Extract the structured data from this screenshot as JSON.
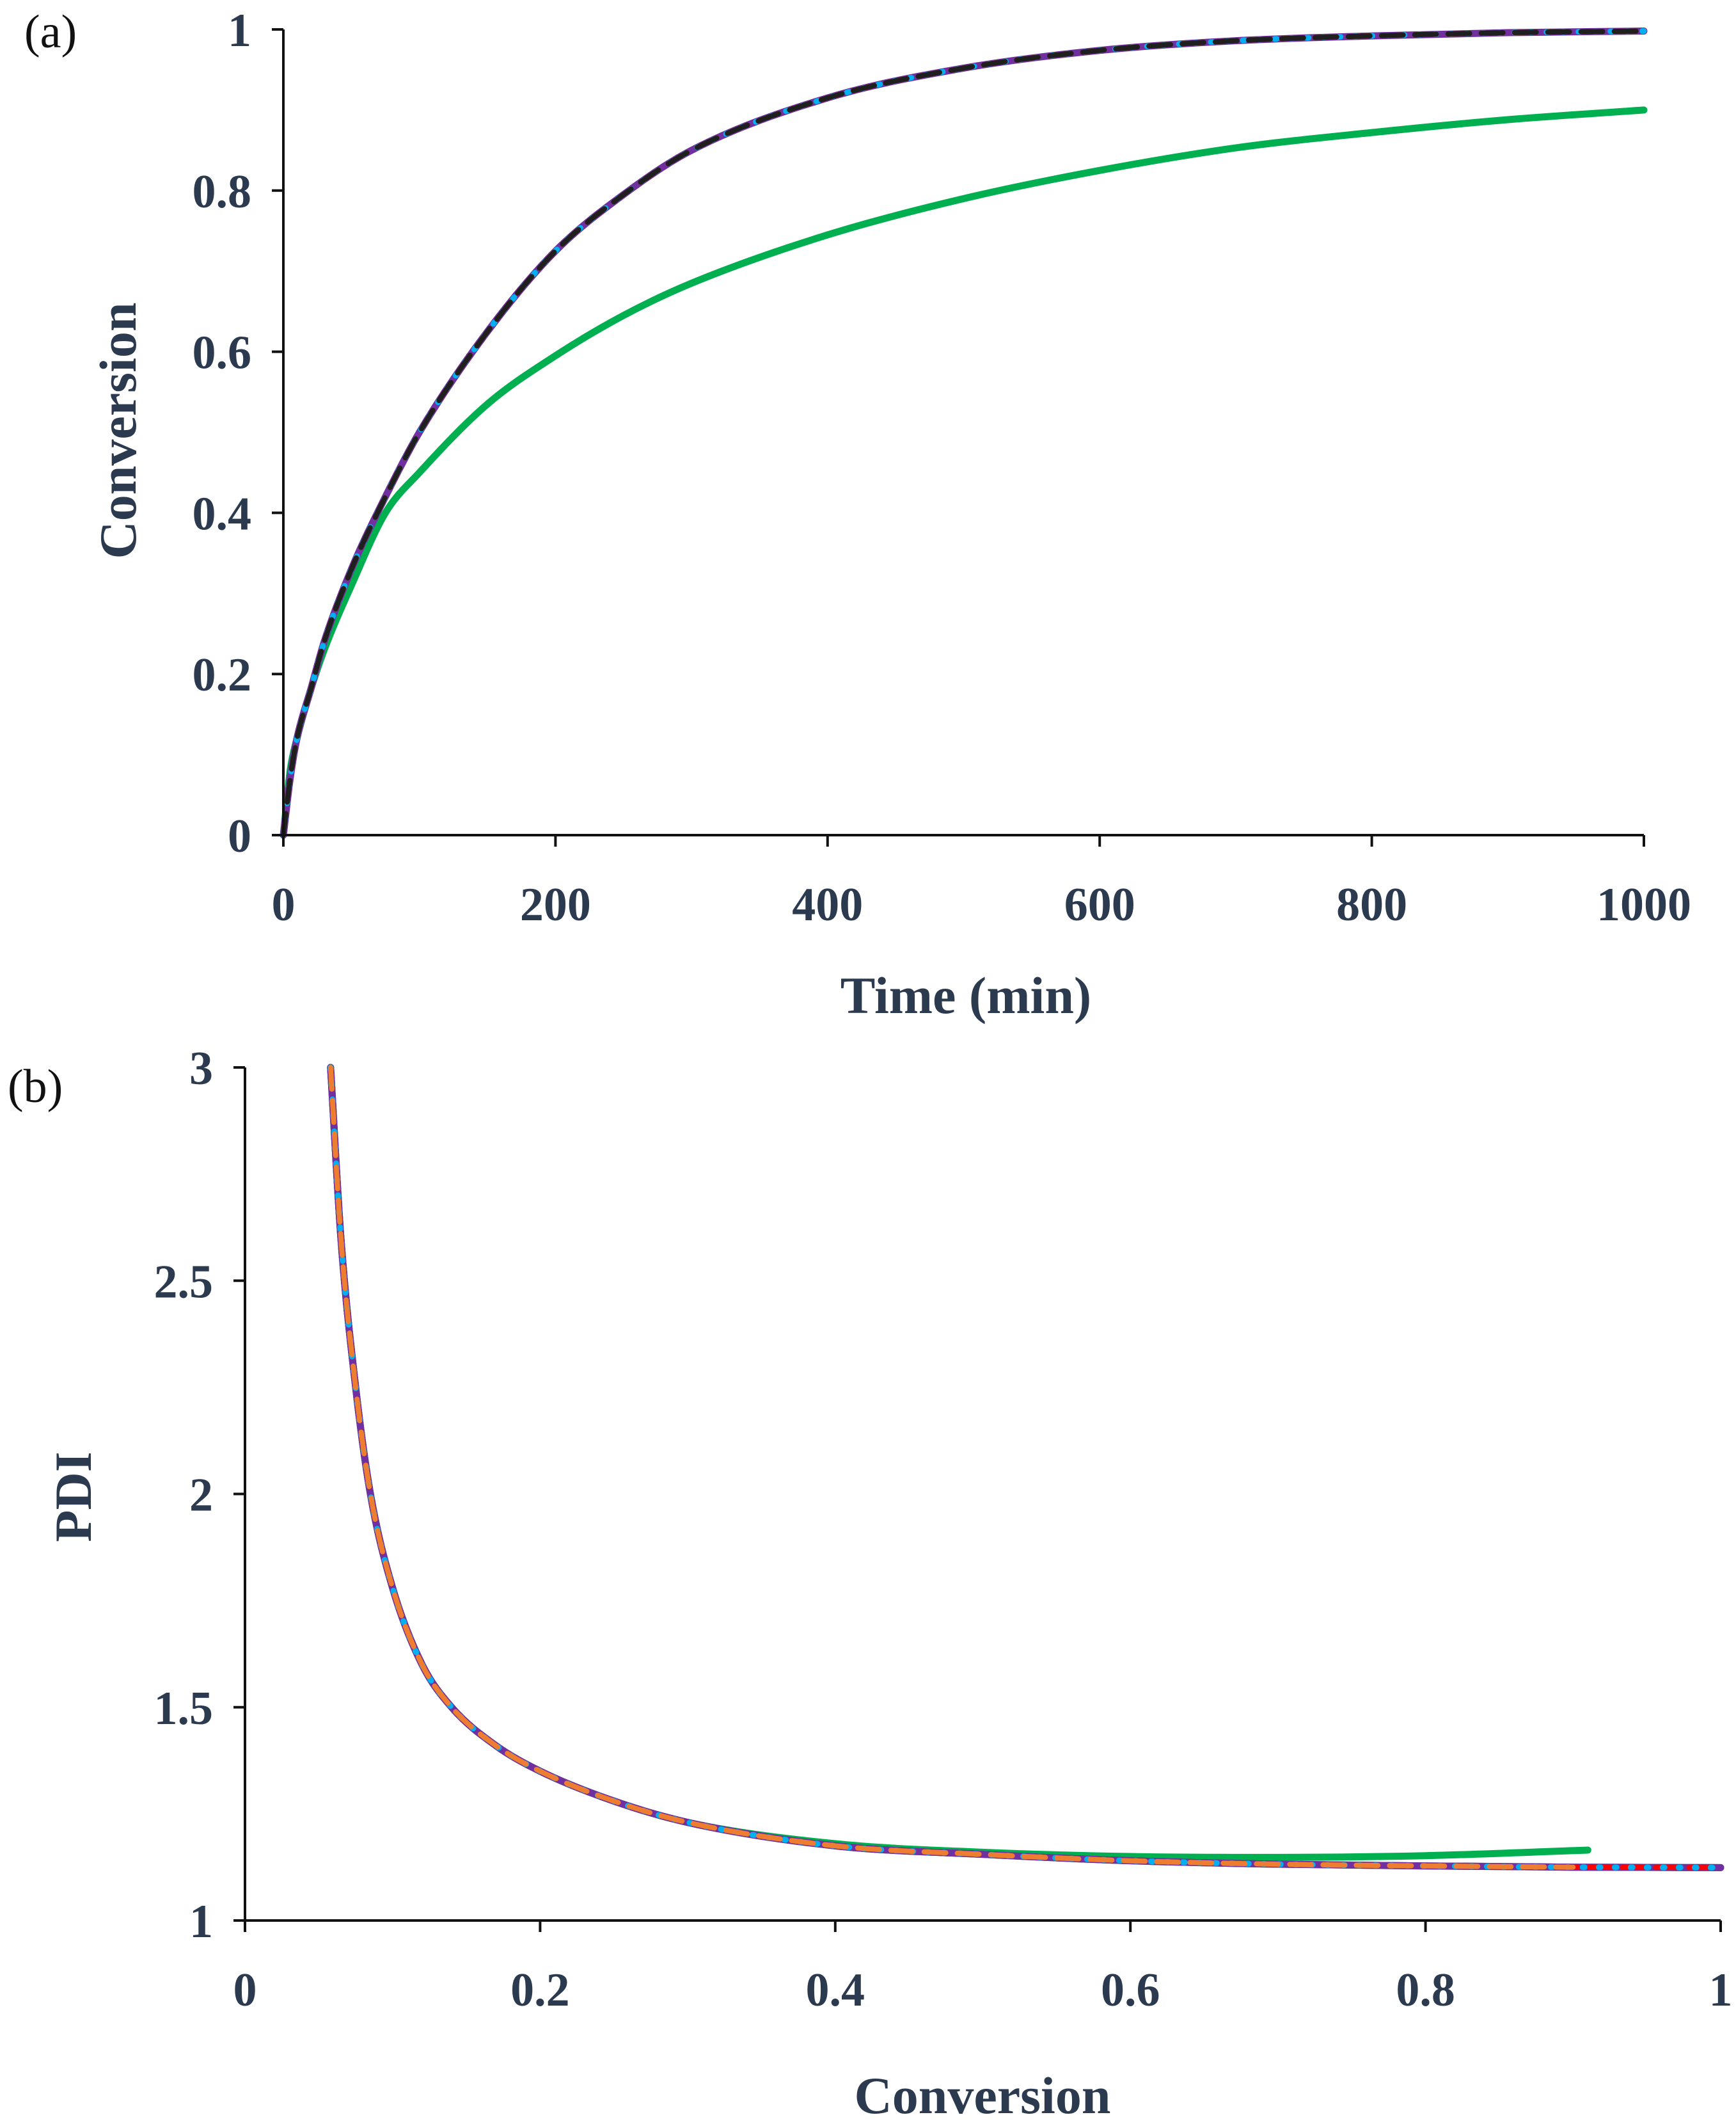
{
  "chart_data": [
    {
      "type": "line",
      "panel_label": "(a)",
      "xlabel": "Time (min)",
      "ylabel": "Conversion",
      "xlim": [
        0,
        1000
      ],
      "ylim": [
        0,
        1
      ],
      "x_ticks": [
        0,
        200,
        400,
        600,
        800,
        1000
      ],
      "y_ticks": [
        0,
        0.2,
        0.4,
        0.6,
        0.8,
        1
      ],
      "x_tick_labels": [
        "0",
        "200",
        "400",
        "600",
        "800",
        "1000"
      ],
      "y_tick_labels": [
        "0",
        "0.2",
        "0.4",
        "0.6",
        "0.8",
        "1"
      ],
      "grid": false,
      "series": [
        {
          "color": "#00b050",
          "style": "solid",
          "x": [
            0,
            5,
            10,
            20,
            30,
            50,
            75,
            100,
            150,
            200,
            250,
            300,
            400,
            500,
            600,
            700,
            800,
            900,
            1000
          ],
          "y": [
            0,
            0.08,
            0.12,
            0.18,
            0.23,
            0.31,
            0.4,
            0.45,
            0.535,
            0.595,
            0.645,
            0.685,
            0.745,
            0.79,
            0.825,
            0.853,
            0.872,
            0.888,
            0.9
          ]
        },
        {
          "color": "#7030a0",
          "style": "solid",
          "x": [
            0,
            5,
            10,
            20,
            30,
            50,
            75,
            100,
            150,
            200,
            250,
            300,
            400,
            500,
            600,
            700,
            800,
            900,
            1000
          ],
          "y": [
            0,
            0.07,
            0.12,
            0.18,
            0.24,
            0.33,
            0.42,
            0.5,
            0.625,
            0.725,
            0.795,
            0.85,
            0.915,
            0.952,
            0.974,
            0.986,
            0.992,
            0.996,
            0.998
          ]
        },
        {
          "color": "#ff0000",
          "style": "dash",
          "x": [
            0,
            5,
            10,
            20,
            30,
            50,
            75,
            100,
            150,
            200,
            250,
            300,
            400,
            500,
            600,
            700,
            800,
            900,
            1000
          ],
          "y": [
            0,
            0.07,
            0.12,
            0.18,
            0.24,
            0.33,
            0.42,
            0.5,
            0.625,
            0.725,
            0.795,
            0.85,
            0.915,
            0.952,
            0.974,
            0.986,
            0.992,
            0.996,
            0.998
          ]
        },
        {
          "color": "#00b0f0",
          "style": "dot",
          "x": [
            0,
            5,
            10,
            20,
            30,
            50,
            75,
            100,
            150,
            200,
            250,
            300,
            400,
            500,
            600,
            700,
            800,
            900,
            1000
          ],
          "y": [
            0,
            0.07,
            0.12,
            0.18,
            0.24,
            0.33,
            0.42,
            0.5,
            0.625,
            0.725,
            0.795,
            0.85,
            0.915,
            0.952,
            0.974,
            0.986,
            0.992,
            0.996,
            0.998
          ]
        },
        {
          "color": "#c55a11",
          "style": "dash",
          "x": [
            0,
            5,
            10,
            20,
            30,
            50,
            75,
            100,
            150,
            200,
            250,
            300,
            400,
            500,
            600,
            700,
            800,
            900,
            1000
          ],
          "y": [
            0,
            0.07,
            0.12,
            0.18,
            0.24,
            0.33,
            0.42,
            0.5,
            0.625,
            0.725,
            0.795,
            0.85,
            0.915,
            0.952,
            0.974,
            0.986,
            0.992,
            0.996,
            0.998
          ]
        },
        {
          "color": "#1f1f1f",
          "style": "dash",
          "x": [
            0,
            5,
            10,
            20,
            30,
            50,
            75,
            100,
            150,
            200,
            250,
            300,
            400,
            500,
            600,
            700,
            800,
            900,
            1000
          ],
          "y": [
            0,
            0.07,
            0.12,
            0.18,
            0.24,
            0.33,
            0.42,
            0.5,
            0.625,
            0.725,
            0.795,
            0.85,
            0.915,
            0.952,
            0.974,
            0.986,
            0.992,
            0.996,
            0.998
          ]
        }
      ]
    },
    {
      "type": "line",
      "panel_label": "(b)",
      "xlabel": "Conversion",
      "ylabel": "PDI",
      "xlim": [
        0,
        1
      ],
      "ylim": [
        1,
        3
      ],
      "x_ticks": [
        0,
        0.2,
        0.4,
        0.6,
        0.8,
        1
      ],
      "y_ticks": [
        1,
        1.5,
        2,
        2.5,
        3
      ],
      "x_tick_labels": [
        "0",
        "0.2",
        "0.4",
        "0.6",
        "0.8",
        "1"
      ],
      "y_tick_labels": [
        "1",
        "1.5",
        "2",
        "2.5",
        "3"
      ],
      "grid": false,
      "series": [
        {
          "color": "#00b050",
          "style": "solid",
          "x": [
            0.058,
            0.065,
            0.075,
            0.085,
            0.1,
            0.12,
            0.14,
            0.17,
            0.2,
            0.25,
            0.3,
            0.4,
            0.5,
            0.6,
            0.7,
            0.8,
            0.91
          ],
          "y": [
            3.0,
            2.6,
            2.25,
            2.0,
            1.78,
            1.6,
            1.5,
            1.41,
            1.35,
            1.28,
            1.23,
            1.18,
            1.16,
            1.15,
            1.148,
            1.152,
            1.165
          ]
        },
        {
          "color": "#1f3864",
          "style": "solid",
          "x": [
            0.058,
            0.065,
            0.075,
            0.085,
            0.1,
            0.12,
            0.14,
            0.17,
            0.2,
            0.25,
            0.3,
            0.4,
            0.5,
            0.6,
            0.7,
            0.8,
            0.9,
            1.0
          ],
          "y": [
            3.0,
            2.6,
            2.25,
            2.0,
            1.78,
            1.6,
            1.5,
            1.41,
            1.35,
            1.28,
            1.23,
            1.175,
            1.155,
            1.14,
            1.132,
            1.128,
            1.125,
            1.124
          ]
        },
        {
          "color": "#7030a0",
          "style": "solid",
          "x": [
            0.058,
            0.065,
            0.075,
            0.085,
            0.1,
            0.12,
            0.14,
            0.17,
            0.2,
            0.25,
            0.3,
            0.4,
            0.5,
            0.6,
            0.7,
            0.8,
            0.9,
            1.0
          ],
          "y": [
            3.0,
            2.6,
            2.25,
            2.0,
            1.78,
            1.6,
            1.5,
            1.41,
            1.35,
            1.28,
            1.23,
            1.175,
            1.155,
            1.14,
            1.132,
            1.128,
            1.125,
            1.124
          ]
        },
        {
          "color": "#ff0000",
          "style": "dash",
          "x": [
            0.058,
            0.065,
            0.075,
            0.085,
            0.1,
            0.12,
            0.14,
            0.17,
            0.2,
            0.25,
            0.3,
            0.4,
            0.5,
            0.6,
            0.7,
            0.8,
            0.9,
            1.0
          ],
          "y": [
            3.0,
            2.6,
            2.25,
            2.0,
            1.78,
            1.6,
            1.5,
            1.41,
            1.35,
            1.28,
            1.23,
            1.175,
            1.155,
            1.14,
            1.132,
            1.128,
            1.125,
            1.124
          ]
        },
        {
          "color": "#00b0f0",
          "style": "dot",
          "x": [
            0.058,
            0.065,
            0.075,
            0.085,
            0.1,
            0.12,
            0.14,
            0.17,
            0.2,
            0.25,
            0.3,
            0.4,
            0.5,
            0.6,
            0.7,
            0.8,
            0.9,
            1.0
          ],
          "y": [
            3.0,
            2.6,
            2.25,
            2.0,
            1.78,
            1.6,
            1.5,
            1.41,
            1.35,
            1.28,
            1.23,
            1.175,
            1.155,
            1.14,
            1.132,
            1.128,
            1.125,
            1.124
          ]
        },
        {
          "color": "#ed7d31",
          "style": "dash",
          "x": [
            0.058,
            0.065,
            0.075,
            0.085,
            0.1,
            0.12,
            0.14,
            0.17,
            0.2,
            0.25,
            0.3,
            0.4,
            0.5,
            0.6,
            0.7,
            0.8,
            0.9
          ],
          "y": [
            3.0,
            2.6,
            2.25,
            2.0,
            1.78,
            1.6,
            1.5,
            1.41,
            1.35,
            1.28,
            1.23,
            1.175,
            1.155,
            1.14,
            1.132,
            1.128,
            1.125
          ]
        }
      ]
    }
  ]
}
